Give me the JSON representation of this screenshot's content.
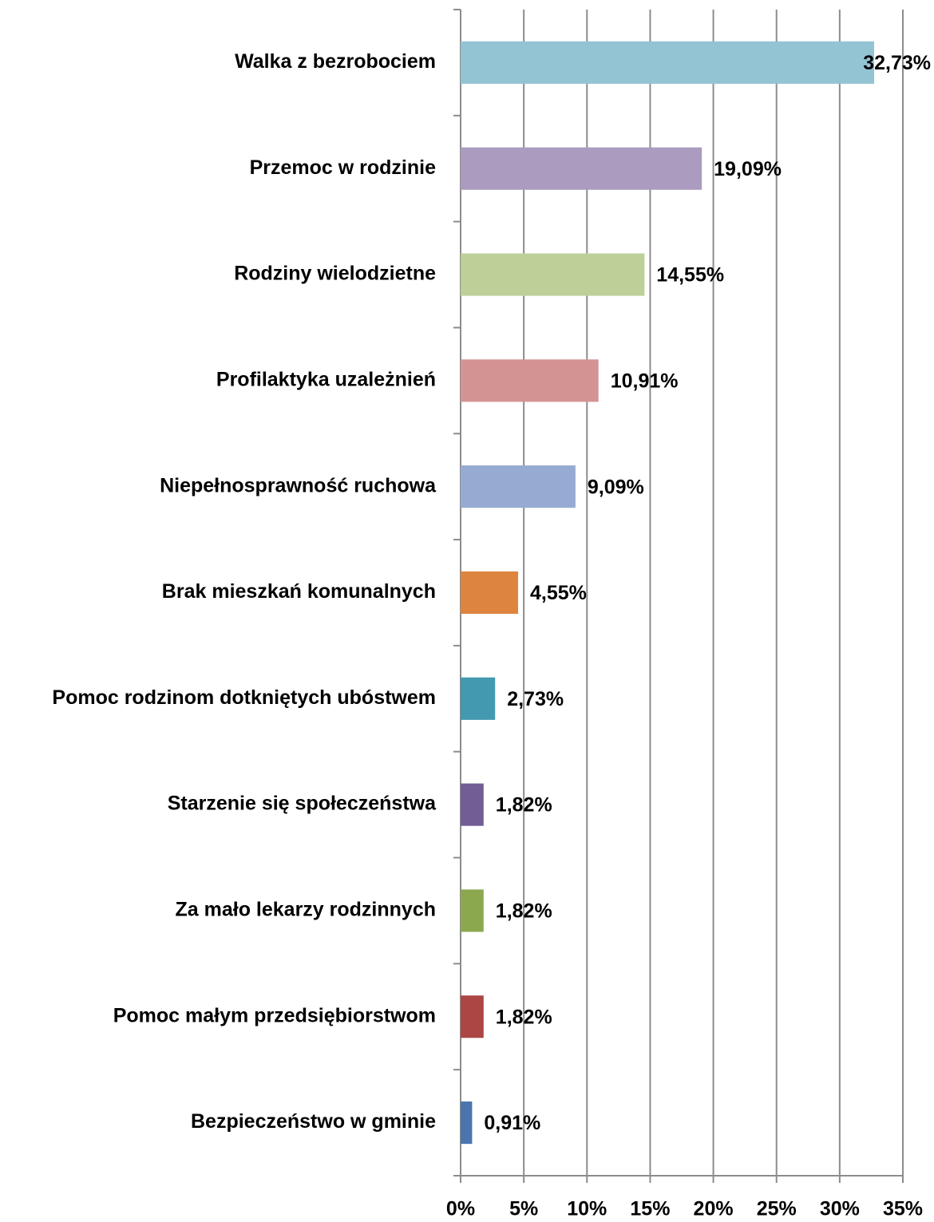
{
  "chart_data": {
    "type": "bar",
    "orientation": "horizontal",
    "categories": [
      "Walka z bezrobociem",
      "Przemoc w rodzinie",
      "Rodziny wielodzietne",
      "Profilaktyka uzależnień",
      "Niepełnosprawność ruchowa",
      "Brak mieszkań komunalnych",
      "Pomoc rodzinom dotkniętych ubóstwem",
      "Starzenie się społeczeństwa",
      "Za mało lekarzy rodzinnych",
      "Pomoc małym przedsiębiorstwom",
      "Bezpieczeństwo w gminie"
    ],
    "values": [
      32.73,
      19.09,
      14.55,
      10.91,
      9.09,
      4.55,
      2.73,
      1.82,
      1.82,
      1.82,
      0.91
    ],
    "value_labels": [
      "32,73%",
      "19,09%",
      "14,55%",
      "10,91%",
      "9,09%",
      "4,55%",
      "2,73%",
      "1,82%",
      "1,82%",
      "1,82%",
      "0,91%"
    ],
    "colors": [
      "#93c4d4",
      "#aa9bbf",
      "#bcd098",
      "#d49393",
      "#96abd2",
      "#dd843e",
      "#4299b0",
      "#735d95",
      "#8ca84f",
      "#ab4645",
      "#4a75af"
    ],
    "xlim": [
      0,
      35
    ],
    "xticks": [
      {
        "value": 0,
        "label": "0%"
      },
      {
        "value": 5,
        "label": "5%"
      },
      {
        "value": 10,
        "label": "10%"
      },
      {
        "value": 15,
        "label": "15%"
      },
      {
        "value": 20,
        "label": "20%"
      },
      {
        "value": 25,
        "label": "25%"
      },
      {
        "value": 30,
        "label": "30%"
      },
      {
        "value": 35,
        "label": "35%"
      }
    ],
    "grid": true
  }
}
